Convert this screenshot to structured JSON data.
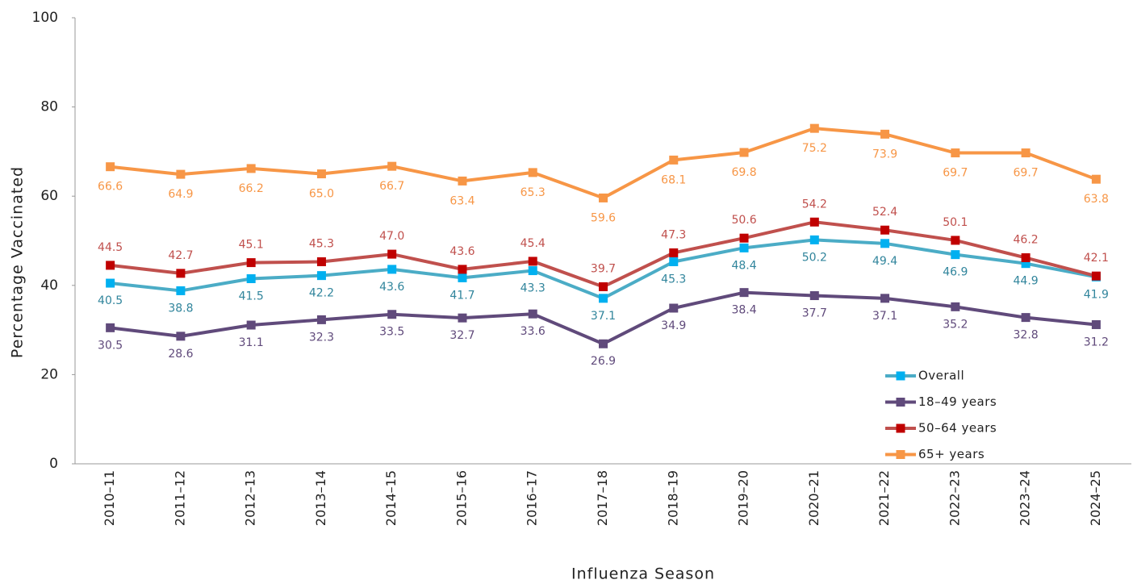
{
  "chart_data": {
    "type": "line",
    "xlabel": "Influenza Season",
    "ylabel": "Percentage Vaccinated",
    "categories": [
      "2010–11",
      "2011–12",
      "2012–13",
      "2013–14",
      "2014–15",
      "2015–16",
      "2016–17",
      "2017–18",
      "2018–19",
      "2019–20",
      "2020–21",
      "2021–22",
      "2022–23",
      "2023–24",
      "2024–25"
    ],
    "ylim": [
      0,
      100
    ],
    "yticks": [
      0,
      20,
      40,
      60,
      80,
      100
    ],
    "grid": false,
    "legend": "lower right",
    "series": [
      {
        "name": "Overall",
        "color": "#4bacc6",
        "marker_color": "#00b0f0",
        "label_color": "#31859c",
        "values": [
          40.5,
          38.8,
          41.5,
          42.2,
          43.6,
          41.7,
          43.3,
          37.1,
          45.3,
          48.4,
          50.2,
          49.4,
          46.9,
          44.9,
          41.9
        ],
        "value_labels": [
          "40.5",
          "38.8",
          "41.5",
          "42.2",
          "43.6",
          "41.7",
          "43.3",
          "37.1",
          "45.3",
          "48.4",
          "50.2",
          "49.4",
          "46.9",
          "44.9",
          "41.9"
        ]
      },
      {
        "name": "18–49 years",
        "color": "#604a7b",
        "marker_color": "#604a7b",
        "label_color": "#604a7b",
        "values": [
          30.5,
          28.6,
          31.1,
          32.3,
          33.5,
          32.7,
          33.6,
          26.9,
          34.9,
          38.4,
          37.7,
          37.1,
          35.2,
          32.8,
          31.2
        ],
        "value_labels": [
          "30.5",
          "28.6",
          "31.1",
          "32.3",
          "33.5",
          "32.7",
          "33.6",
          "26.9",
          "34.9",
          "38.4",
          "37.7",
          "37.1",
          "35.2",
          "32.8",
          "31.2"
        ]
      },
      {
        "name": "50–64 years",
        "color": "#c0504d",
        "marker_color": "#c00000",
        "label_color": "#c0504d",
        "values": [
          44.5,
          42.7,
          45.1,
          45.3,
          47.0,
          43.6,
          45.4,
          39.7,
          47.3,
          50.6,
          54.2,
          52.4,
          50.1,
          46.2,
          42.1
        ],
        "value_labels": [
          "44.5",
          "42.7",
          "45.1",
          "45.3",
          "47.0",
          "43.6",
          "45.4",
          "39.7",
          "47.3",
          "50.6",
          "54.2",
          "52.4",
          "50.1",
          "46.2",
          "42.1"
        ]
      },
      {
        "name": "65+ years",
        "color": "#f79646",
        "marker_color": "#f79646",
        "label_color": "#f79646",
        "values": [
          66.6,
          64.9,
          66.2,
          65.0,
          66.7,
          63.4,
          65.3,
          59.6,
          68.1,
          69.8,
          75.2,
          73.9,
          69.7,
          69.7,
          63.8
        ],
        "value_labels": [
          "66.6",
          "64.9",
          "66.2",
          "65.0",
          "66.7",
          "63.4",
          "65.3",
          "59.6",
          "68.1",
          "69.8",
          "75.2",
          "73.9",
          "69.7",
          "69.7",
          "63.8"
        ]
      }
    ]
  }
}
